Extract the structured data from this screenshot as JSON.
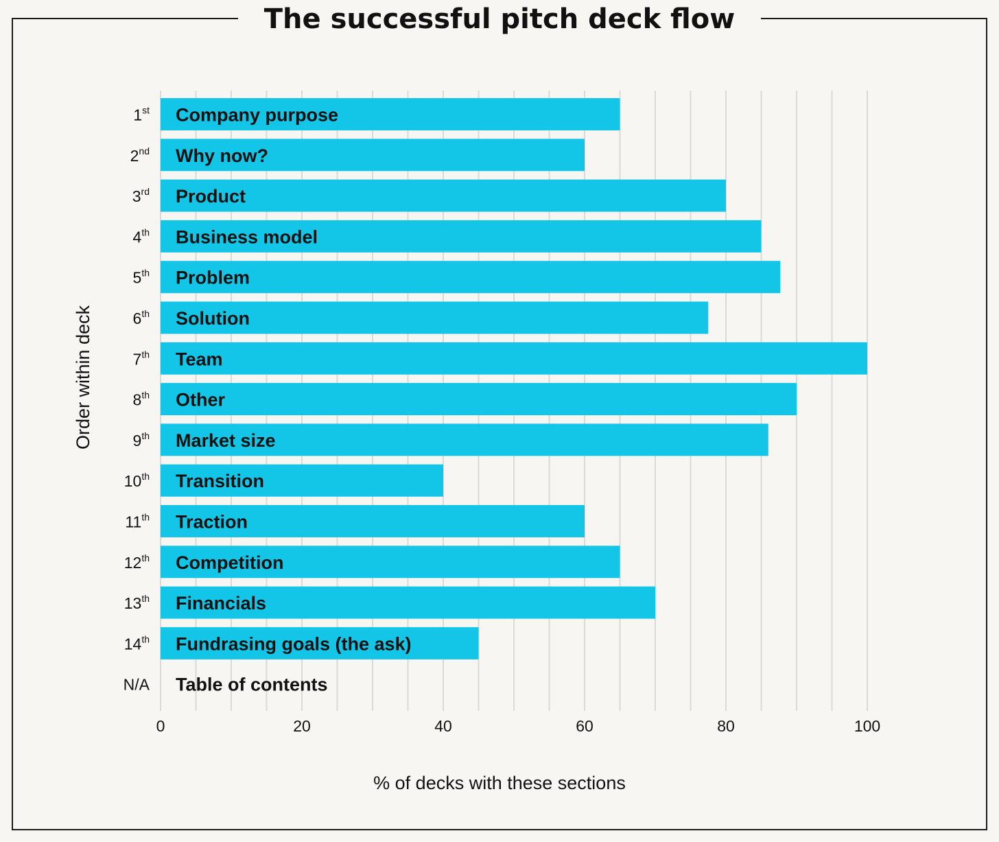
{
  "title": "The successful pitch deck flow",
  "chart_data": {
    "type": "bar",
    "orientation": "horizontal",
    "title": "The successful pitch deck flow",
    "xlabel": "% of decks with these sections",
    "ylabel": "Order within deck",
    "xlim": [
      0,
      100
    ],
    "xticks": [
      0,
      20,
      40,
      60,
      80,
      100
    ],
    "grid": true,
    "bar_color": "#13c6e8",
    "rows": [
      {
        "rank": "1",
        "suffix": "st",
        "category": "Company purpose",
        "value": 65
      },
      {
        "rank": "2",
        "suffix": "nd",
        "category": "Why now?",
        "value": 60
      },
      {
        "rank": "3",
        "suffix": "rd",
        "category": "Product",
        "value": 80
      },
      {
        "rank": "4",
        "suffix": "th",
        "category": "Business model",
        "value": 85
      },
      {
        "rank": "5",
        "suffix": "th",
        "category": "Problem",
        "value": 87.7
      },
      {
        "rank": "6",
        "suffix": "th",
        "category": "Solution",
        "value": 77.5
      },
      {
        "rank": "7",
        "suffix": "th",
        "category": "Team",
        "value": 100
      },
      {
        "rank": "8",
        "suffix": "th",
        "category": "Other",
        "value": 90
      },
      {
        "rank": "9",
        "suffix": "th",
        "category": "Market size",
        "value": 86
      },
      {
        "rank": "10",
        "suffix": "th",
        "category": "Transition",
        "value": 40
      },
      {
        "rank": "11",
        "suffix": "th",
        "category": "Traction",
        "value": 60
      },
      {
        "rank": "12",
        "suffix": "th",
        "category": "Competition",
        "value": 65
      },
      {
        "rank": "13",
        "suffix": "th",
        "category": "Financials",
        "value": 70
      },
      {
        "rank": "14",
        "suffix": "th",
        "category": "Fundrasing goals (the ask)",
        "value": 45
      },
      {
        "rank": "N/A",
        "suffix": "",
        "category": "Table of contents",
        "value": 0
      }
    ]
  }
}
